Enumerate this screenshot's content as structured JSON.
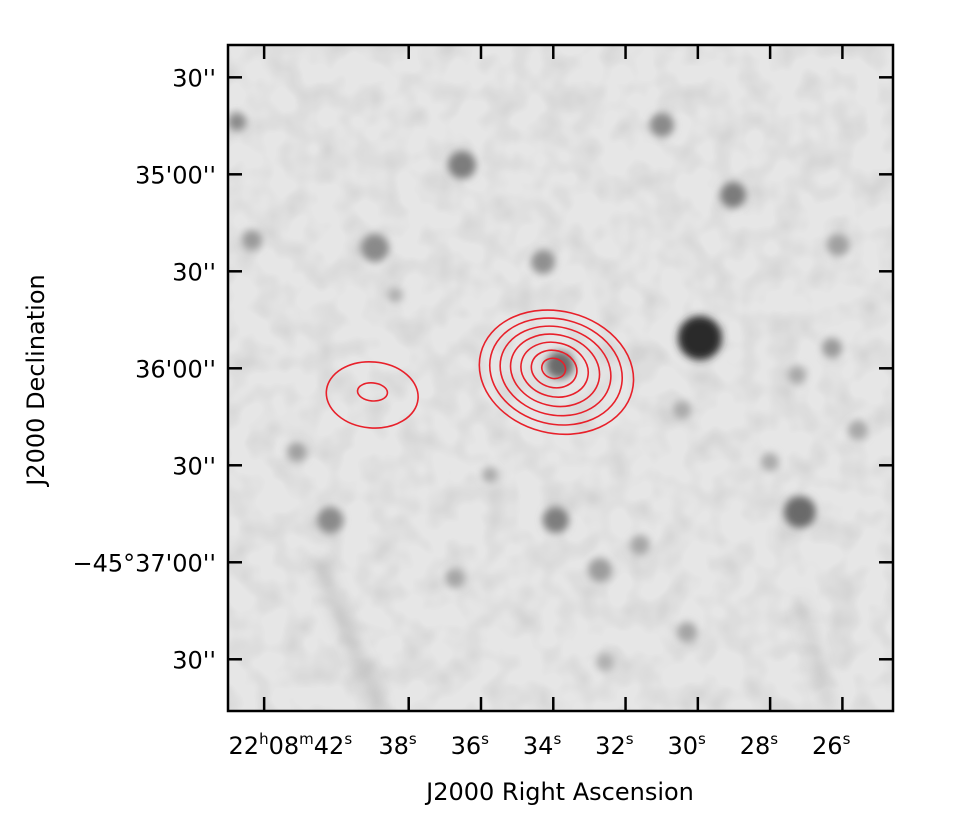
{
  "chart_data": {
    "type": "image",
    "xlabel": "J2000 Right Ascension",
    "ylabel": "J2000 Declination",
    "colormap": "grayscale",
    "contour_color": "#e8202a",
    "x_ticks": [
      {
        "h": "22",
        "m": "08",
        "s": "42",
        "sec": 42
      },
      {
        "h": "",
        "m": "",
        "s": "38",
        "sec": 38
      },
      {
        "h": "",
        "m": "",
        "s": "36",
        "sec": 36
      },
      {
        "h": "",
        "m": "",
        "s": "34",
        "sec": 34
      },
      {
        "h": "",
        "m": "",
        "s": "32",
        "sec": 32
      },
      {
        "h": "",
        "m": "",
        "s": "30",
        "sec": 30
      },
      {
        "h": "",
        "m": "",
        "s": "28",
        "sec": 28
      },
      {
        "h": "",
        "m": "",
        "s": "26",
        "sec": 26
      }
    ],
    "y_ticks": [
      {
        "label": "30''",
        "arcsec": -5370
      },
      {
        "label": "35'00''",
        "arcsec": -5400
      },
      {
        "label": "30''",
        "arcsec": -5430
      },
      {
        "label": "36'00''",
        "arcsec": -5460
      },
      {
        "label": "30''",
        "arcsec": -5490
      },
      {
        "label": "−45°37'00''",
        "arcsec": -5520
      },
      {
        "label": "30''",
        "arcsec": -5550
      }
    ],
    "x_range_sec": [
      43.0,
      24.6
    ],
    "y_range_arcsec": [
      -5360,
      -5566
    ],
    "contour_sources": [
      {
        "ra_sec": 34.0,
        "dec_arcsec": -5460,
        "levels": 7
      },
      {
        "ra_sec": 39.0,
        "dec_arcsec": -5467,
        "levels": 2
      }
    ],
    "grid": false,
    "legend": "none"
  }
}
